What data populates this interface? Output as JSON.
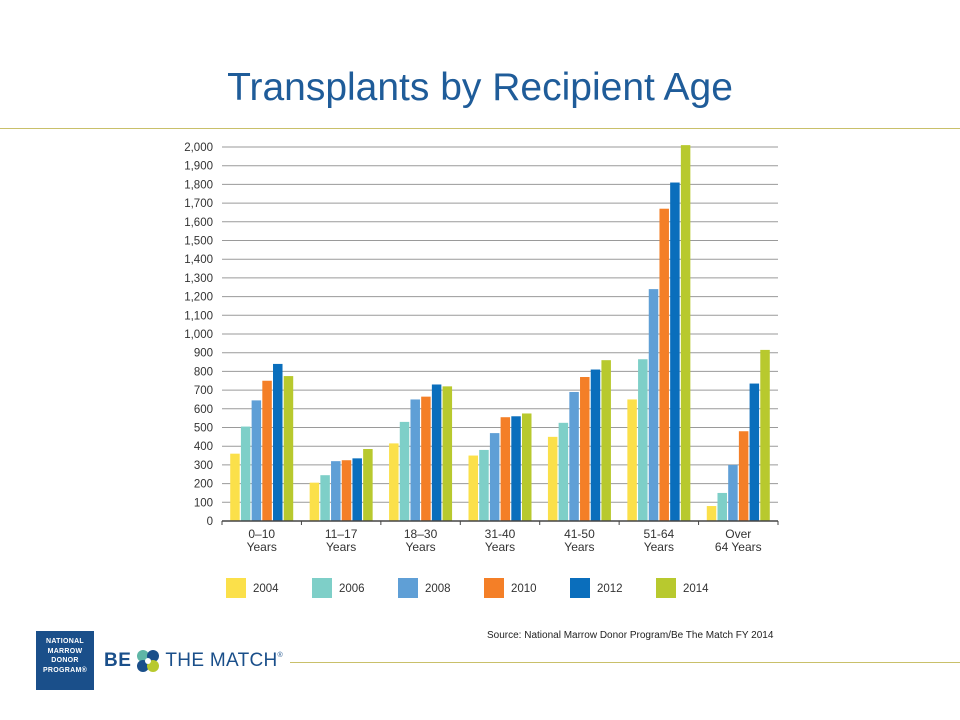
{
  "slide": {
    "title": "Transplants by Recipient Age",
    "source": "Source: National Marrow Donor Program/Be The Match FY 2014"
  },
  "logos": {
    "nmdp_lines": [
      "NATIONAL",
      "MARROW",
      "DONOR",
      "PROGRAM®"
    ],
    "btm_be": "BE",
    "btm_the_match": "THE MATCH",
    "btm_reg": "®"
  },
  "colors": {
    "title": "#1f5c99",
    "accent_rule": "#c9c06a",
    "nmdp_blue": "#1a4f8a"
  },
  "chart_data": {
    "type": "bar",
    "title": "",
    "xlabel": "",
    "ylabel": "",
    "ylim": [
      0,
      2000
    ],
    "yticks": [
      0,
      100,
      200,
      300,
      400,
      500,
      600,
      700,
      800,
      900,
      1000,
      1100,
      1200,
      1300,
      1400,
      1500,
      1600,
      1700,
      1800,
      1900,
      2000
    ],
    "ytick_labels": [
      "0",
      "100",
      "200",
      "300",
      "400",
      "500",
      "600",
      "700",
      "800",
      "900",
      "1,000",
      "1,100",
      "1,200",
      "1,300",
      "1,400",
      "1,500",
      "1,600",
      "1,700",
      "1,800",
      "1,900",
      "2,000"
    ],
    "grid": true,
    "legend_position": "bottom",
    "categories": [
      [
        "0–10",
        "Years"
      ],
      [
        "11–17",
        "Years"
      ],
      [
        "18–30",
        "Years"
      ],
      [
        "31-40",
        "Years"
      ],
      [
        "41-50",
        "Years"
      ],
      [
        "51-64",
        "Years"
      ],
      [
        "Over",
        "64 Years"
      ]
    ],
    "series": [
      {
        "name": "2004",
        "color": "#fbe04a",
        "values": [
          360,
          205,
          415,
          350,
          450,
          650,
          80
        ]
      },
      {
        "name": "2006",
        "color": "#7ecfc8",
        "values": [
          505,
          245,
          530,
          380,
          525,
          865,
          150
        ]
      },
      {
        "name": "2008",
        "color": "#5f9fd6",
        "values": [
          645,
          320,
          650,
          470,
          690,
          1240,
          300
        ]
      },
      {
        "name": "2010",
        "color": "#f47f27",
        "values": [
          750,
          325,
          665,
          555,
          770,
          1670,
          480
        ]
      },
      {
        "name": "2012",
        "color": "#0a6ebc",
        "values": [
          840,
          335,
          730,
          560,
          810,
          1810,
          735
        ]
      },
      {
        "name": "2014",
        "color": "#b8c92e",
        "values": [
          775,
          385,
          720,
          575,
          860,
          2010,
          915
        ]
      }
    ]
  }
}
